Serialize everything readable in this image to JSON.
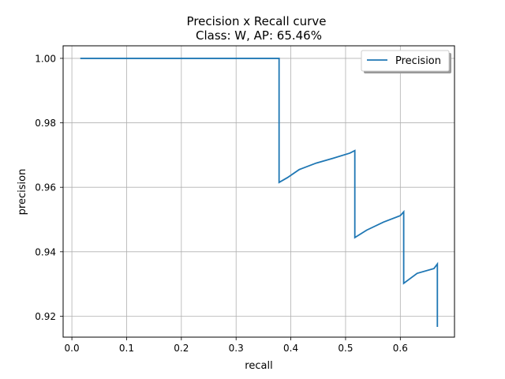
{
  "chart_data": {
    "type": "line",
    "title": "Precision x Recall curve",
    "subtitle": "Class: W, AP: 65.46%",
    "xlabel": "recall",
    "ylabel": "precision",
    "xlim": [
      -0.016,
      0.699
    ],
    "ylim": [
      0.9135,
      1.0039
    ],
    "xticks": [
      0.0,
      0.1,
      0.2,
      0.3,
      0.4,
      0.5,
      0.6
    ],
    "xtick_labels": [
      "0.0",
      "0.1",
      "0.2",
      "0.3",
      "0.4",
      "0.5",
      "0.6"
    ],
    "yticks": [
      0.92,
      0.94,
      0.96,
      0.98,
      1.0
    ],
    "ytick_labels": [
      "0.92",
      "0.94",
      "0.96",
      "0.98",
      "1.00"
    ],
    "grid": true,
    "legend_position": "top-right",
    "series": [
      {
        "name": "Precision",
        "color": "#1f77b4",
        "x": [
          0.0154,
          0.0308,
          0.1,
          0.2,
          0.3,
          0.3785,
          0.3785,
          0.3938,
          0.4154,
          0.4462,
          0.4769,
          0.5077,
          0.5169,
          0.5169,
          0.5385,
          0.5692,
          0.6,
          0.6062,
          0.6062,
          0.6308,
          0.6615,
          0.6677,
          0.6677
        ],
        "y": [
          1.0,
          1.0,
          1.0,
          1.0,
          1.0,
          1.0,
          0.9615,
          0.963,
          0.9655,
          0.9675,
          0.969,
          0.9706,
          0.9714,
          0.9444,
          0.9467,
          0.9492,
          0.9512,
          0.9524,
          0.9302,
          0.9333,
          0.9348,
          0.9362,
          0.9167
        ]
      }
    ]
  }
}
